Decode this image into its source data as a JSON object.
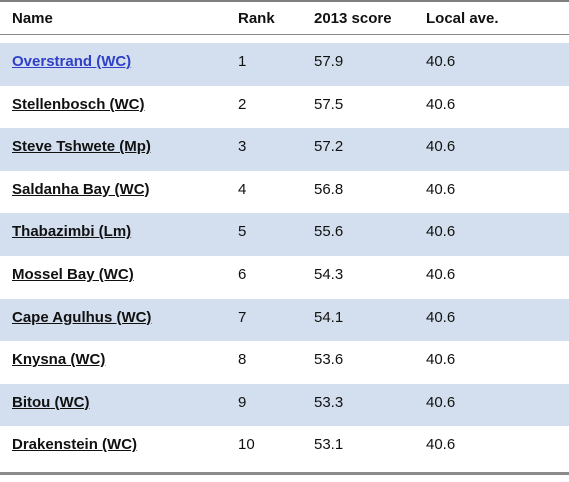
{
  "table": {
    "headers": {
      "name": "Name",
      "rank": "Rank",
      "score": "2013 score",
      "ave": "Local ave."
    },
    "rows": [
      {
        "name": "Overstrand (WC)",
        "rank": "1",
        "score": "57.9",
        "ave": "40.6"
      },
      {
        "name": "Stellenbosch (WC)",
        "rank": "2",
        "score": "57.5",
        "ave": "40.6"
      },
      {
        "name": "Steve Tshwete (Mp)",
        "rank": "3",
        "score": "57.2",
        "ave": "40.6"
      },
      {
        "name": "Saldanha Bay (WC)",
        "rank": "4",
        "score": "56.8",
        "ave": "40.6"
      },
      {
        "name": "Thabazimbi (Lm)",
        "rank": "5",
        "score": "55.6",
        "ave": "40.6"
      },
      {
        "name": "Mossel Bay (WC)",
        "rank": "6",
        "score": "54.3",
        "ave": "40.6"
      },
      {
        "name": "Cape Agulhus (WC)",
        "rank": "7",
        "score": "54.1",
        "ave": "40.6"
      },
      {
        "name": "Knysna (WC)",
        "rank": "8",
        "score": "53.6",
        "ave": "40.6"
      },
      {
        "name": "Bitou (WC)",
        "rank": "9",
        "score": "53.3",
        "ave": "40.6"
      },
      {
        "name": "Drakenstein (WC)",
        "rank": "10",
        "score": "53.1",
        "ave": "40.6"
      }
    ]
  },
  "colors": {
    "row_shade": "#d3dfee",
    "link_active": "#2f3fc7"
  }
}
